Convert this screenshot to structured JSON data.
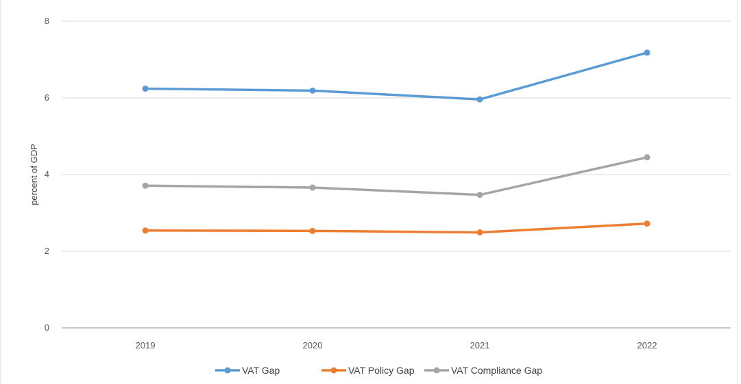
{
  "chart_data": {
    "type": "line",
    "title": "",
    "xlabel": "",
    "ylabel": "percent of GDP",
    "categories": [
      "2019",
      "2020",
      "2021",
      "2022"
    ],
    "ylim": [
      0,
      8
    ],
    "yticks": [
      "0",
      "2",
      "4",
      "6",
      "8"
    ],
    "grid": "horizontal",
    "legend_position": "bottom",
    "series": [
      {
        "name": "VAT Gap",
        "color": "#5b9bd5",
        "values": [
          6.24,
          6.19,
          5.96,
          7.18
        ]
      },
      {
        "name": "VAT Policy Gap",
        "color": "#ed7d31",
        "values": [
          2.54,
          2.53,
          2.49,
          2.72
        ]
      },
      {
        "name": "VAT Compliance Gap",
        "color": "#a5a5a5",
        "values": [
          3.71,
          3.66,
          3.47,
          4.45
        ]
      }
    ]
  }
}
